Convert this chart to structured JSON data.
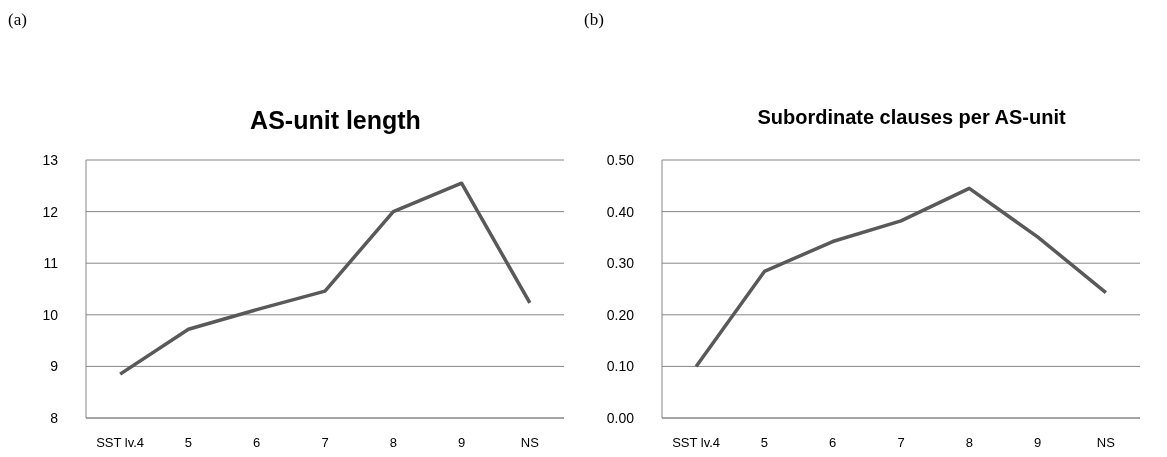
{
  "chart_data": [
    {
      "type": "line",
      "title": "AS-unit length",
      "annotations": [
        "(a)"
      ],
      "categories": [
        "SST lv.4",
        "5",
        "6",
        "7",
        "8",
        "9",
        "NS"
      ],
      "series": [
        {
          "color": "#595959",
          "values": [
            8.85,
            9.72,
            10.1,
            10.46,
            12.0,
            12.55,
            10.23
          ]
        }
      ],
      "ylim": [
        8,
        13
      ],
      "yticks": [
        8,
        9,
        10,
        11,
        12,
        13
      ],
      "grid": "y",
      "legend": false,
      "marker": "none",
      "line_style": "solid"
    },
    {
      "type": "line",
      "title": "Subordinate clauses per AS-unit",
      "annotations": [
        "(b)"
      ],
      "categories": [
        "SST lv.4",
        "5",
        "6",
        "7",
        "8",
        "9",
        "NS"
      ],
      "series": [
        {
          "color": "#595959",
          "values": [
            0.1,
            0.284,
            0.342,
            0.382,
            0.445,
            0.351,
            0.243
          ]
        }
      ],
      "ylim": [
        0,
        0.5
      ],
      "yticks": [
        {
          "value": 0,
          "label": "0.00"
        },
        {
          "value": 0.1,
          "label": "0.10"
        },
        {
          "value": 0.2,
          "label": "0.20"
        },
        {
          "value": 0.3,
          "label": "0.30"
        },
        {
          "value": 0.4,
          "label": "0.40"
        },
        {
          "value": 0.5,
          "label": "0.50"
        }
      ],
      "grid": "y",
      "legend": false,
      "marker": "none",
      "line_style": "solid"
    }
  ]
}
